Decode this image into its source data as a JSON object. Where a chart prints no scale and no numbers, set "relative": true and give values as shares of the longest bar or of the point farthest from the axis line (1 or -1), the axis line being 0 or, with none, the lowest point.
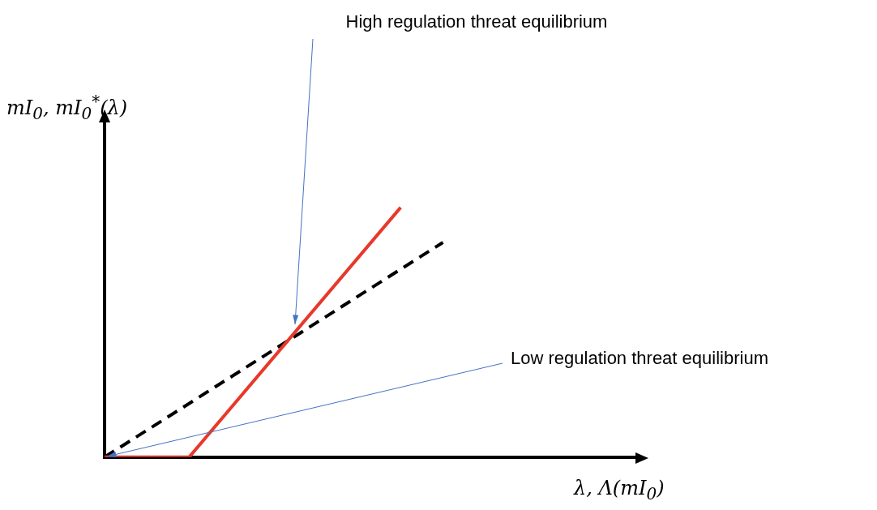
{
  "chart_data": {
    "type": "line",
    "relative": true,
    "xlabel": "λ, Λ(mI$_{0}$)",
    "ylabel": "mI$_{0}$, mI$_{0}$$^{*}$(λ)",
    "grid": false,
    "legend": false,
    "marker": "none",
    "categories": [
      null,
      null,
      null,
      null,
      null,
      null,
      null,
      null,
      null,
      null,
      null,
      null,
      null,
      null,
      null,
      null,
      null,
      null,
      null,
      null,
      null,
      null,
      null,
      null,
      null,
      null,
      null,
      null,
      null,
      null,
      null,
      null,
      null,
      null,
      null,
      null,
      null,
      null,
      null
    ],
    "series": [
      {
        "color": "#e8382a",
        "line_style": "solid",
        "values": [
          0,
          null,
          null,
          null,
          null,
          null,
          0,
          null,
          null,
          null,
          null,
          null,
          null,
          null,
          null,
          null,
          null,
          null,
          null,
          null,
          null,
          1,
          null,
          null,
          null,
          null,
          null,
          null,
          null,
          null,
          null,
          null,
          null,
          null,
          null,
          null,
          null,
          null,
          null
        ]
      },
      {
        "color": "#000000",
        "line_style": "dashed",
        "values": [
          0,
          null,
          null,
          null,
          null,
          null,
          null,
          null,
          null,
          null,
          null,
          null,
          null,
          null,
          null,
          null,
          null,
          null,
          null,
          null,
          null,
          null,
          null,
          null,
          0.86,
          null,
          null,
          null,
          null,
          null,
          null,
          null,
          null,
          null,
          null,
          null,
          null,
          null,
          null
        ]
      }
    ],
    "annotations": [
      "High regulation threat equilibrium",
      "Low regulation threat equilibrium"
    ]
  }
}
